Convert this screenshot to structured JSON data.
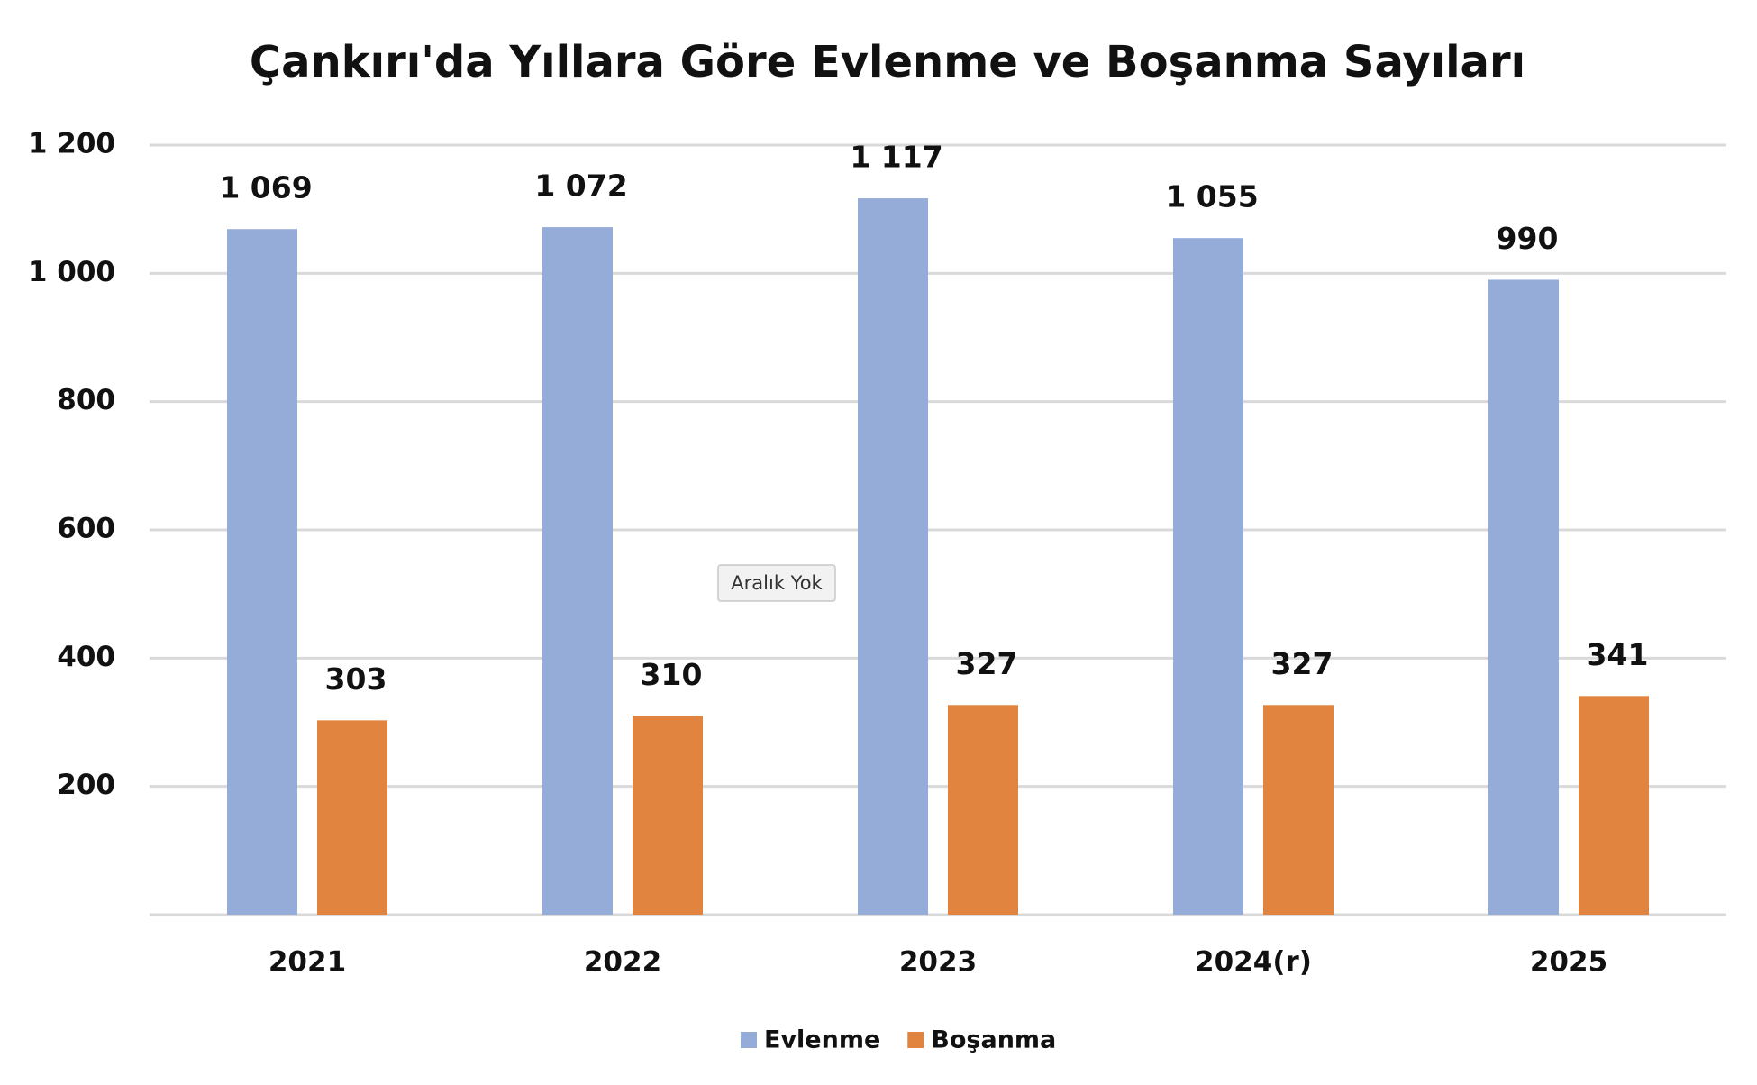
{
  "chart_data": {
    "type": "bar",
    "title": "Çankırı'da Yıllara Göre Evlenme ve Boşanma Sayıları",
    "categories": [
      "2021",
      "2022",
      "2023",
      "2024(r)",
      "2025"
    ],
    "series": [
      {
        "name": "Evlenme",
        "color": "#95abd8",
        "values": [
          1069,
          1072,
          1117,
          1055,
          990
        ],
        "value_labels": [
          "1 069",
          "1 072",
          "1 117",
          "1 055",
          "990"
        ]
      },
      {
        "name": "Boşanma",
        "color": "#e0843f",
        "values": [
          303,
          310,
          327,
          327,
          341
        ]
      }
    ],
    "ylim": [
      0,
      1200
    ],
    "yticks": [
      200,
      400,
      600,
      800,
      {
        "value": 1000,
        "label": "1 000"
      },
      {
        "value": 1200,
        "label": "1 200"
      }
    ],
    "grid": true,
    "legend": "bottom",
    "tooltip": "Aralık Yok"
  }
}
